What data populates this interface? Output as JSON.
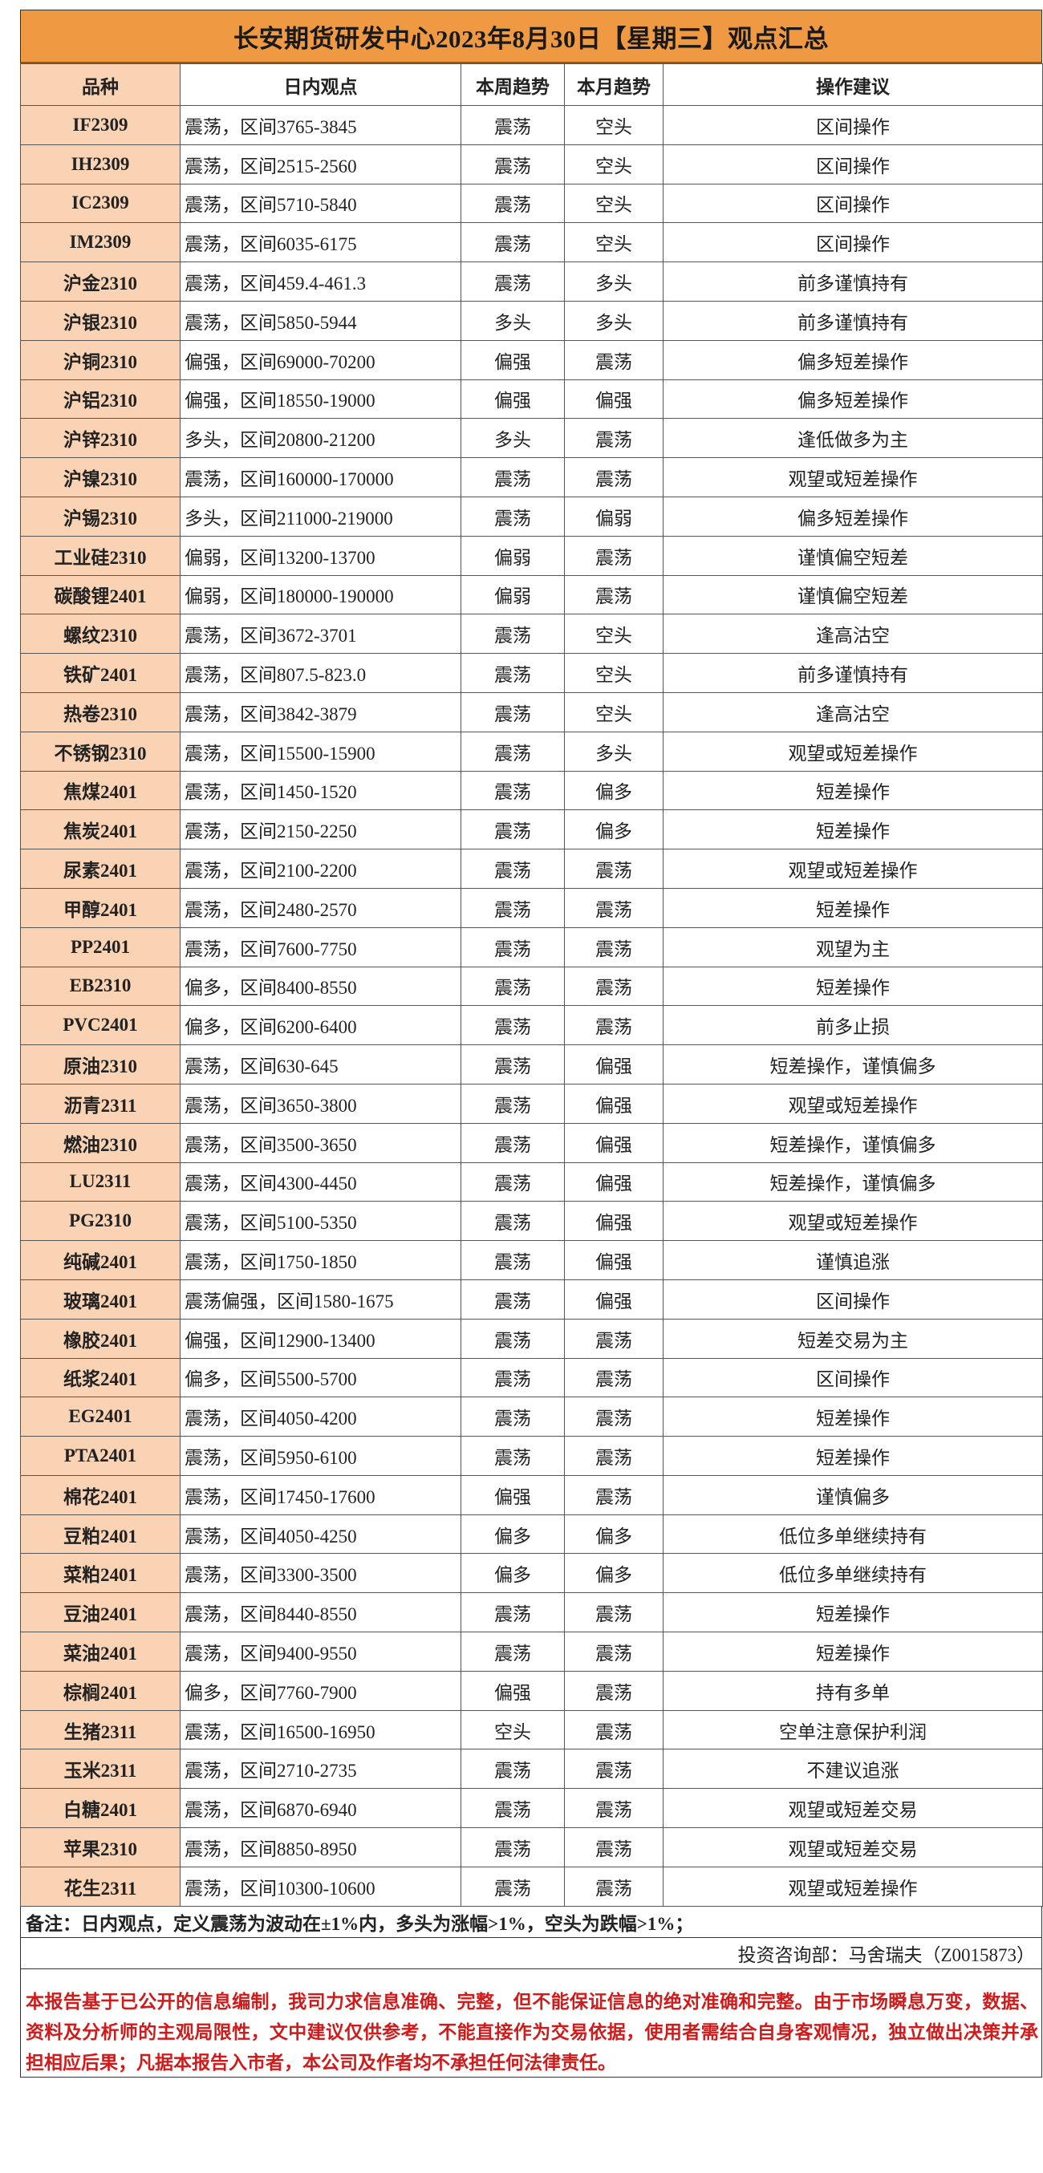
{
  "title": "长安期货研发中心2023年8月30日【星期三】观点汇总",
  "colors": {
    "title_bg": "#EF9A43",
    "variety_bg": "#FAD3B4",
    "disclaimer_text": "#D11A1A"
  },
  "table": {
    "headers": [
      "品种",
      "日内观点",
      "本周趋势",
      "本月趋势",
      "操作建议"
    ],
    "rows": [
      [
        "IF2309",
        "震荡，区间3765-3845",
        "震荡",
        "空头",
        "区间操作"
      ],
      [
        "IH2309",
        "震荡，区间2515-2560",
        "震荡",
        "空头",
        "区间操作"
      ],
      [
        "IC2309",
        "震荡，区间5710-5840",
        "震荡",
        "空头",
        "区间操作"
      ],
      [
        "IM2309",
        "震荡，区间6035-6175",
        "震荡",
        "空头",
        "区间操作"
      ],
      [
        "沪金2310",
        "震荡，区间459.4-461.3",
        "震荡",
        "多头",
        "前多谨慎持有"
      ],
      [
        "沪银2310",
        "震荡，区间5850-5944",
        "多头",
        "多头",
        "前多谨慎持有"
      ],
      [
        "沪铜2310",
        "偏强，区间69000-70200",
        "偏强",
        "震荡",
        "偏多短差操作"
      ],
      [
        "沪铝2310",
        "偏强，区间18550-19000",
        "偏强",
        "偏强",
        "偏多短差操作"
      ],
      [
        "沪锌2310",
        "多头，区间20800-21200",
        "多头",
        "震荡",
        "逢低做多为主"
      ],
      [
        "沪镍2310",
        "震荡，区间160000-170000",
        "震荡",
        "震荡",
        "观望或短差操作"
      ],
      [
        "沪锡2310",
        "多头，区间211000-219000",
        "震荡",
        "偏弱",
        "偏多短差操作"
      ],
      [
        "工业硅2310",
        "偏弱，区间13200-13700",
        "偏弱",
        "震荡",
        "谨慎偏空短差"
      ],
      [
        "碳酸锂2401",
        "偏弱，区间180000-190000",
        "偏弱",
        "震荡",
        "谨慎偏空短差"
      ],
      [
        "螺纹2310",
        "震荡，区间3672-3701",
        "震荡",
        "空头",
        "逢高沽空"
      ],
      [
        "铁矿2401",
        "震荡，区间807.5-823.0",
        "震荡",
        "空头",
        "前多谨慎持有"
      ],
      [
        "热卷2310",
        "震荡，区间3842-3879",
        "震荡",
        "空头",
        "逢高沽空"
      ],
      [
        "不锈钢2310",
        "震荡，区间15500-15900",
        "震荡",
        "多头",
        "观望或短差操作"
      ],
      [
        "焦煤2401",
        "震荡，区间1450-1520",
        "震荡",
        "偏多",
        "短差操作"
      ],
      [
        "焦炭2401",
        "震荡，区间2150-2250",
        "震荡",
        "偏多",
        "短差操作"
      ],
      [
        "尿素2401",
        "震荡，区间2100-2200",
        "震荡",
        "震荡",
        "观望或短差操作"
      ],
      [
        "甲醇2401",
        "震荡，区间2480-2570",
        "震荡",
        "震荡",
        "短差操作"
      ],
      [
        "PP2401",
        "震荡，区间7600-7750",
        "震荡",
        "震荡",
        "观望为主"
      ],
      [
        "EB2310",
        "偏多，区间8400-8550",
        "震荡",
        "震荡",
        "短差操作"
      ],
      [
        "PVC2401",
        "偏多，区间6200-6400",
        "震荡",
        "震荡",
        "前多止损"
      ],
      [
        "原油2310",
        "震荡，区间630-645",
        "震荡",
        "偏强",
        "短差操作，谨慎偏多"
      ],
      [
        "沥青2311",
        "震荡，区间3650-3800",
        "震荡",
        "偏强",
        "观望或短差操作"
      ],
      [
        "燃油2310",
        "震荡，区间3500-3650",
        "震荡",
        "偏强",
        "短差操作，谨慎偏多"
      ],
      [
        "LU2311",
        "震荡，区间4300-4450",
        "震荡",
        "偏强",
        "短差操作，谨慎偏多"
      ],
      [
        "PG2310",
        "震荡，区间5100-5350",
        "震荡",
        "偏强",
        "观望或短差操作"
      ],
      [
        "纯碱2401",
        "震荡，区间1750-1850",
        "震荡",
        "偏强",
        "谨慎追涨"
      ],
      [
        "玻璃2401",
        "震荡偏强，区间1580-1675",
        "震荡",
        "偏强",
        "区间操作"
      ],
      [
        "橡胶2401",
        "偏强，区间12900-13400",
        "震荡",
        "震荡",
        "短差交易为主"
      ],
      [
        "纸浆2401",
        "偏多，区间5500-5700",
        "震荡",
        "震荡",
        "区间操作"
      ],
      [
        "EG2401",
        "震荡，区间4050-4200",
        "震荡",
        "震荡",
        "短差操作"
      ],
      [
        "PTA2401",
        "震荡，区间5950-6100",
        "震荡",
        "震荡",
        "短差操作"
      ],
      [
        "棉花2401",
        "震荡，区间17450-17600",
        "偏强",
        "震荡",
        "谨慎偏多"
      ],
      [
        "豆粕2401",
        "震荡，区间4050-4250",
        "偏多",
        "偏多",
        "低位多单继续持有"
      ],
      [
        "菜粕2401",
        "震荡，区间3300-3500",
        "偏多",
        "偏多",
        "低位多单继续持有"
      ],
      [
        "豆油2401",
        "震荡，区间8440-8550",
        "震荡",
        "震荡",
        "短差操作"
      ],
      [
        "菜油2401",
        "震荡，区间9400-9550",
        "震荡",
        "震荡",
        "短差操作"
      ],
      [
        "棕榈2401",
        "偏多，区间7760-7900",
        "偏强",
        "震荡",
        "持有多单"
      ],
      [
        "生猪2311",
        "震荡，区间16500-16950",
        "空头",
        "震荡",
        "空单注意保护利润"
      ],
      [
        "玉米2311",
        "震荡，区间2710-2735",
        "震荡",
        "震荡",
        "不建议追涨"
      ],
      [
        "白糖2401",
        "震荡，区间6870-6940",
        "震荡",
        "震荡",
        "观望或短差交易"
      ],
      [
        "苹果2310",
        "震荡，区间8850-8950",
        "震荡",
        "震荡",
        "观望或短差交易"
      ],
      [
        "花生2311",
        "震荡，区间10300-10600",
        "震荡",
        "震荡",
        "观望或短差操作"
      ]
    ]
  },
  "note": "备注：日内观点，定义震荡为波动在±1%内，多头为涨幅>1%，空头为跌幅>1%；",
  "contact": "投资咨询部：马舍瑞夫（Z0015873）",
  "disclaimer": "本报告基于已公开的信息编制，我司力求信息准确、完整，但不能保证信息的绝对准确和完整。由于市场瞬息万变，数据、资料及分析师的主观局限性，文中建议仅供参考，不能直接作为交易依据，使用者需结合自身客观情况，独立做出决策并承担相应后果；凡据本报告入市者，本公司及作者均不承担任何法律责任。"
}
